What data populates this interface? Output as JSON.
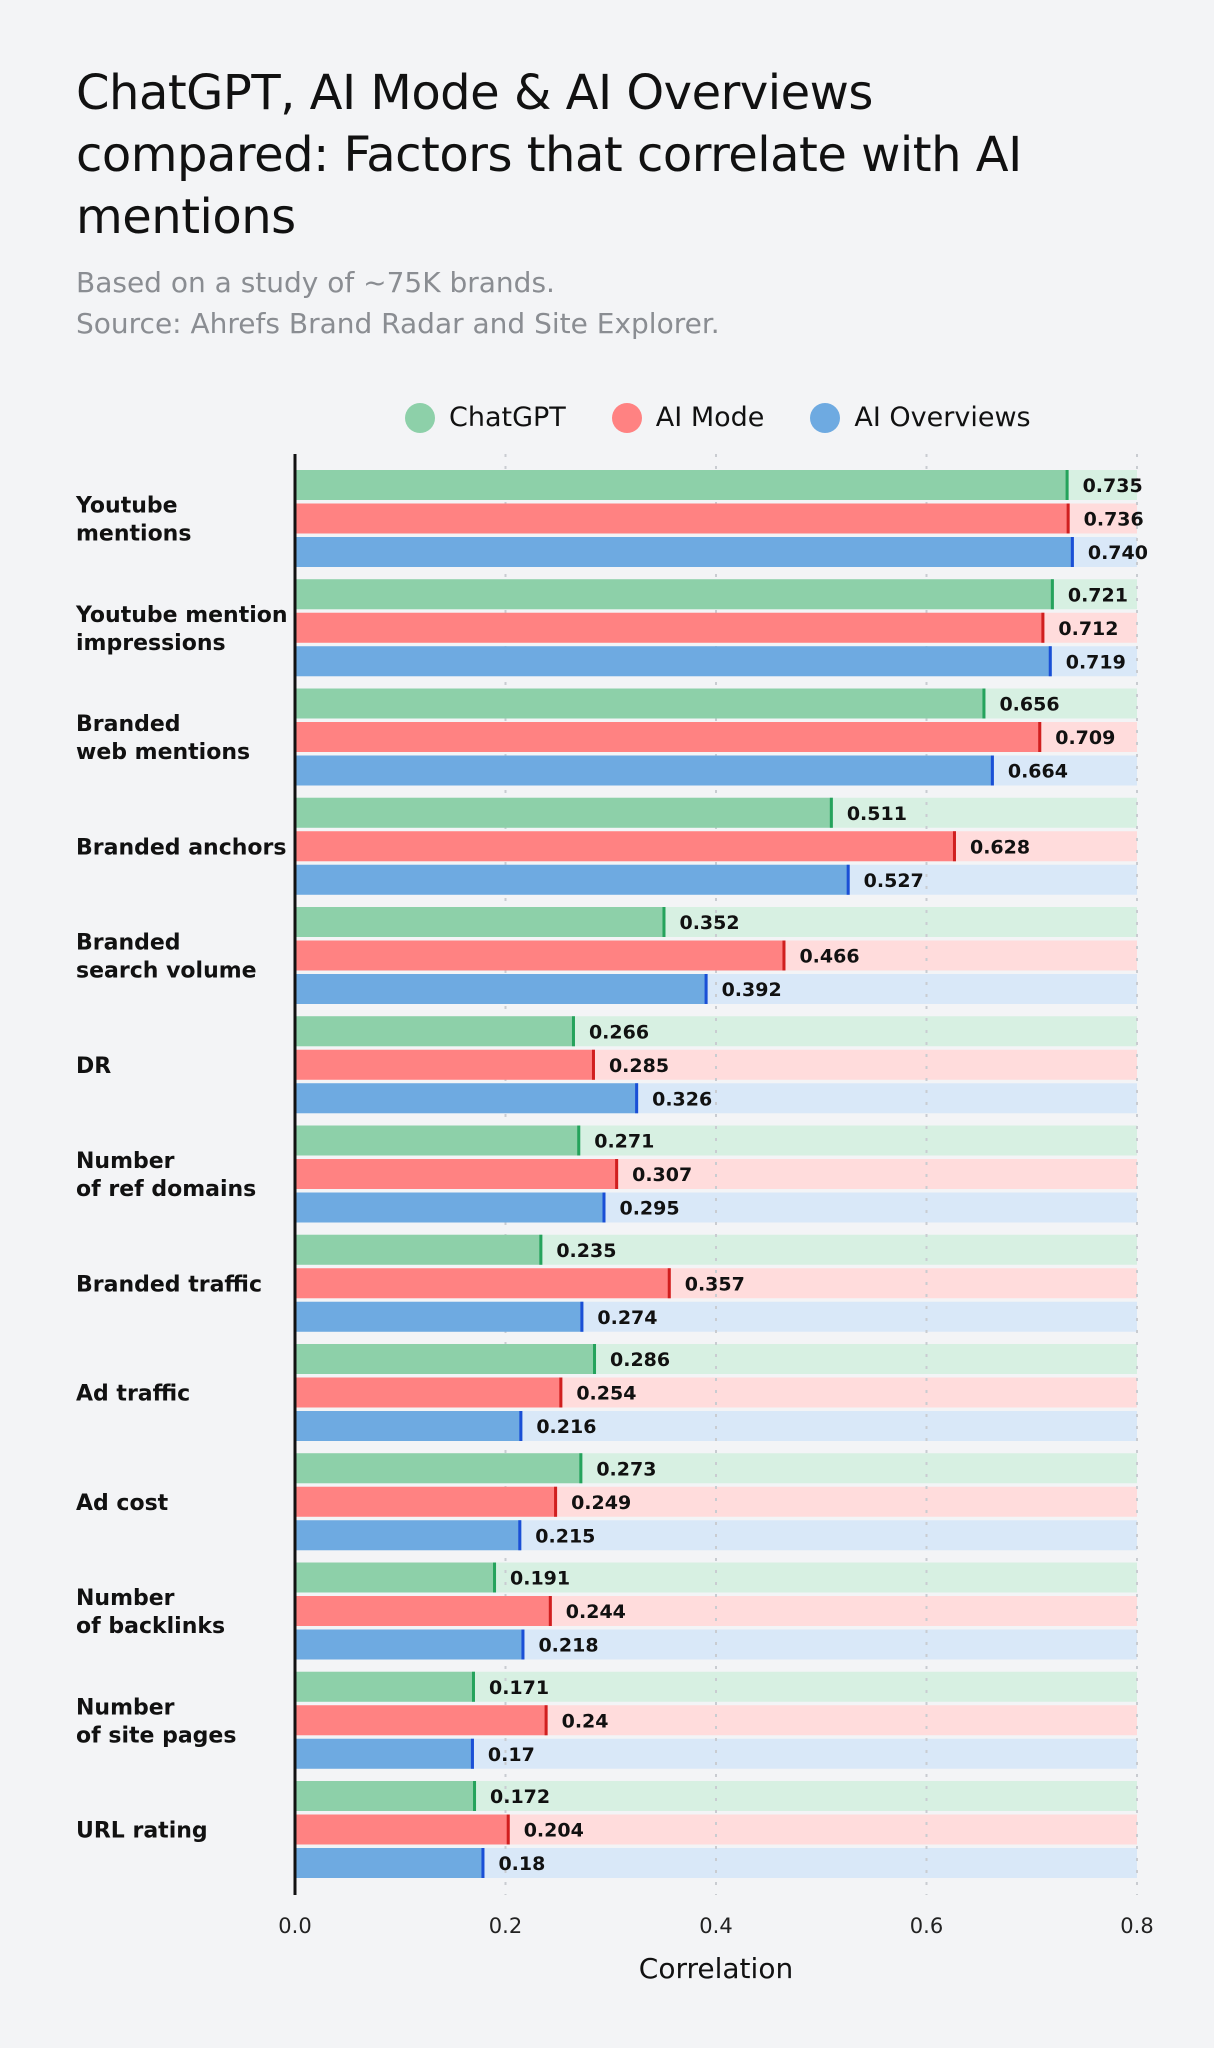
{
  "chart_data": {
    "type": "bar",
    "orientation": "horizontal",
    "title": "ChatGPT, AI Mode & AI Overviews compared: Factors that correlate with AI mentions",
    "subtitle": [
      "Based on a study of ~75K brands.",
      "Source: Ahrefs Brand Radar and Site Explorer."
    ],
    "xlabel": "Correlation",
    "xlim": [
      0,
      0.8
    ],
    "xticks": [
      "0.0",
      "0.2",
      "0.4",
      "0.6",
      "0.8"
    ],
    "grid": "vertical dotted",
    "legend_position": "top",
    "categories": [
      [
        "Youtube",
        "mentions"
      ],
      [
        "Youtube mention",
        "impressions"
      ],
      [
        "Branded",
        "web mentions"
      ],
      [
        "Branded anchors"
      ],
      [
        "Branded",
        "search volume"
      ],
      [
        "DR"
      ],
      [
        "Number",
        "of ref domains"
      ],
      [
        "Branded traffic"
      ],
      [
        "Ad traffic"
      ],
      [
        "Ad cost"
      ],
      [
        "Number",
        "of backlinks"
      ],
      [
        "Number",
        "of site pages"
      ],
      [
        "URL rating"
      ]
    ],
    "series": [
      {
        "name": "ChatGPT",
        "color": "#8dd0a9",
        "track": "#d7f0e2",
        "edge": "#25a35c",
        "values": [
          0.735,
          0.721,
          0.656,
          0.511,
          0.352,
          0.266,
          0.271,
          0.235,
          0.286,
          0.273,
          0.191,
          0.171,
          0.172
        ],
        "labels": [
          "0.735",
          "0.721",
          "0.656",
          "0.511",
          "0.352",
          "0.266",
          "0.271",
          "0.235",
          "0.286",
          "0.273",
          "0.191",
          "0.171",
          "0.172"
        ]
      },
      {
        "name": "AI Mode",
        "color": "#ff8282",
        "track": "#ffdcdc",
        "edge": "#d01f1f",
        "values": [
          0.736,
          0.712,
          0.709,
          0.628,
          0.466,
          0.285,
          0.307,
          0.357,
          0.254,
          0.249,
          0.244,
          0.24,
          0.204
        ],
        "labels": [
          "0.736",
          "0.712",
          "0.709",
          "0.628",
          "0.466",
          "0.285",
          "0.307",
          "0.357",
          "0.254",
          "0.249",
          "0.244",
          "0.24",
          "0.204"
        ]
      },
      {
        "name": "AI Overviews",
        "color": "#6eaae1",
        "track": "#d9e8f8",
        "edge": "#1a4fd6",
        "values": [
          0.74,
          0.719,
          0.664,
          0.527,
          0.392,
          0.326,
          0.295,
          0.274,
          0.216,
          0.215,
          0.218,
          0.17,
          0.18
        ],
        "labels": [
          "0.740",
          "0.719",
          "0.664",
          "0.527",
          "0.392",
          "0.326",
          "0.295",
          "0.274",
          "0.216",
          "0.215",
          "0.218",
          "0.17",
          "0.18"
        ]
      }
    ]
  }
}
